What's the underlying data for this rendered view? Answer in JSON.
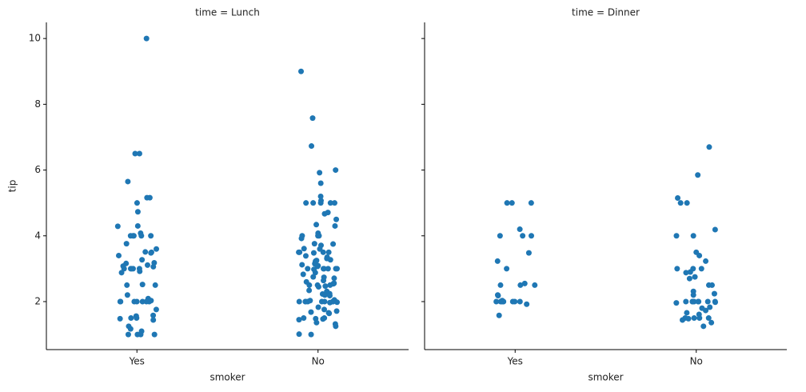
{
  "chart_data": [
    {
      "type": "strip",
      "title": "time = Lunch",
      "xlabel": "smoker",
      "ylabel": "tip",
      "color": "#1f77b4",
      "categories": [
        "Yes",
        "No"
      ],
      "values": [
        [
          10,
          6.5,
          6.5,
          5.65,
          5.16,
          5.16,
          5,
          4.73,
          4.3,
          4.29,
          4.08,
          4,
          4,
          4,
          4,
          4,
          3.76,
          3.6,
          3.51,
          3.5,
          3.48,
          3.4,
          3.27,
          3.18,
          3.16,
          3.11,
          3.08,
          3.06,
          3,
          3,
          3,
          3,
          3,
          2.92,
          2.88,
          2.52,
          2.5,
          2.5,
          2.2,
          2.09,
          2.03,
          2,
          2,
          2,
          2,
          2,
          2,
          2,
          1.76,
          1.58,
          1.56,
          1.5,
          1.5,
          1.48,
          1.44,
          1.25,
          1.17,
          1.1,
          1,
          1,
          1,
          1
        ],
        [
          9,
          7.58,
          6.73,
          6,
          5.92,
          5.6,
          5.2,
          5.07,
          5,
          5,
          5,
          5,
          5,
          4.71,
          4.67,
          4.5,
          4.34,
          4.3,
          4.08,
          4,
          4,
          4,
          3.92,
          3.76,
          3.75,
          3.71,
          3.61,
          3.6,
          3.5,
          3.5,
          3.5,
          3.5,
          3.48,
          3.39,
          3.35,
          3.31,
          3.27,
          3.25,
          3.23,
          3.18,
          3.15,
          3.12,
          3.09,
          3.07,
          3,
          3,
          3,
          3,
          3,
          3,
          2.98,
          2.88,
          2.83,
          2.75,
          2.74,
          2.71,
          2.64,
          2.6,
          2.56,
          2.55,
          2.54,
          2.5,
          2.5,
          2.5,
          2.47,
          2.45,
          2.34,
          2.31,
          2.24,
          2.23,
          2.2,
          2.18,
          2.05,
          2.03,
          2.02,
          2,
          2,
          2,
          2,
          2,
          2,
          2,
          2,
          1.98,
          1.97,
          1.83,
          1.76,
          1.71,
          1.68,
          1.66,
          1.64,
          1.5,
          1.5,
          1.48,
          1.47,
          1.45,
          1.36,
          1.32,
          1.25,
          1.01,
          1
        ]
      ],
      "ylim": [
        0.54,
        10.49
      ],
      "yticks": [
        2,
        4,
        6,
        8,
        10
      ]
    },
    {
      "type": "strip",
      "title": "time = Dinner",
      "xlabel": "smoker",
      "color": "#1f77b4",
      "categories": [
        "Yes",
        "No"
      ],
      "values": [
        [
          5,
          5,
          5,
          4.2,
          4,
          4,
          4,
          3.48,
          3.23,
          3,
          2.55,
          2.5,
          2.5,
          2.2,
          2,
          2,
          2,
          2,
          2,
          2,
          2,
          1.92,
          2,
          2.03,
          1.58,
          2.5,
          2.18
        ],
        [
          6.7,
          5.85,
          5.15,
          5,
          5,
          4.19,
          4,
          4,
          3.5,
          3.4,
          3.23,
          3,
          3,
          3,
          2.9,
          2.88,
          2.75,
          2.7,
          2.5,
          2.5,
          2.31,
          2.24,
          2.2,
          2,
          2,
          2,
          2,
          2,
          2,
          2,
          2,
          1.98,
          1.96,
          1.83,
          1.8,
          1.73,
          1.66,
          1.61,
          1.5,
          1.5,
          1.5,
          1.5,
          1.48,
          1.44,
          1.36,
          1.25
        ]
      ],
      "ylim": [
        0.54,
        10.49
      ],
      "yticks": [
        2,
        4,
        6,
        8,
        10
      ]
    }
  ]
}
